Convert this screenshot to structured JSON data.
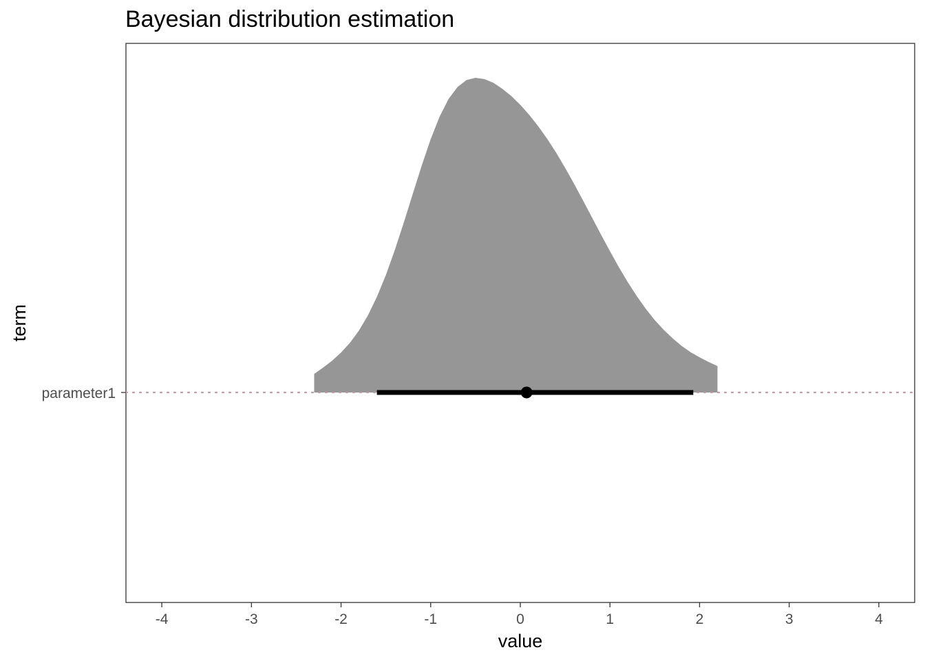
{
  "chart_data": {
    "type": "area",
    "title": "Bayesian distribution estimation",
    "xlabel": "value",
    "ylabel": "term",
    "xlim": [
      -4.4,
      4.4
    ],
    "x_ticks": [
      -4,
      -3,
      -2,
      -1,
      0,
      1,
      2,
      3,
      4
    ],
    "x_tick_labels": [
      "-4",
      "-3",
      "-2",
      "-1",
      "0",
      "1",
      "2",
      "3",
      "4"
    ],
    "y_categories": [
      "parameter1"
    ],
    "grid": false,
    "reference_line": {
      "style": "dotted",
      "color": "#c09aa8"
    },
    "series": [
      {
        "category": "parameter1",
        "kind": "density",
        "color": "#969696",
        "x": [
          -2.3,
          -2.3,
          -2.2,
          -2.1,
          -2.0,
          -1.9,
          -1.8,
          -1.7,
          -1.6,
          -1.5,
          -1.4,
          -1.3,
          -1.2,
          -1.1,
          -1.0,
          -0.9,
          -0.8,
          -0.7,
          -0.6,
          -0.5,
          -0.4,
          -0.3,
          -0.2,
          -0.1,
          0.0,
          0.1,
          0.2,
          0.3,
          0.4,
          0.5,
          0.6,
          0.7,
          0.8,
          0.9,
          1.0,
          1.1,
          1.2,
          1.3,
          1.4,
          1.5,
          1.6,
          1.7,
          1.8,
          1.9,
          2.0,
          2.1,
          2.2,
          2.2
        ],
        "density": [
          0.0,
          0.059,
          0.079,
          0.101,
          0.127,
          0.158,
          0.197,
          0.245,
          0.304,
          0.373,
          0.453,
          0.54,
          0.631,
          0.721,
          0.805,
          0.877,
          0.933,
          0.971,
          0.993,
          1.0,
          0.996,
          0.984,
          0.965,
          0.942,
          0.914,
          0.882,
          0.846,
          0.806,
          0.762,
          0.714,
          0.663,
          0.61,
          0.556,
          0.502,
          0.449,
          0.398,
          0.35,
          0.306,
          0.266,
          0.23,
          0.199,
          0.172,
          0.148,
          0.128,
          0.112,
          0.097,
          0.084,
          0.0
        ]
      },
      {
        "category": "parameter1",
        "kind": "interval",
        "color": "#000000",
        "lower": -1.6,
        "upper": 1.93,
        "point": 0.07
      }
    ]
  }
}
